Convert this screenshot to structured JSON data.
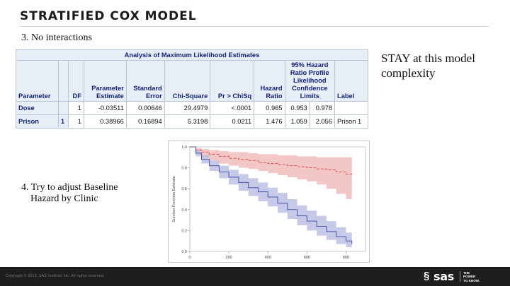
{
  "slide": {
    "title": "STRATIFIED COX MODEL",
    "bullet1": "3. No interactions",
    "bullet2_line1": "4. Try to adjust Baseline",
    "bullet2_line2": "Hazard by Clinic",
    "note": "STAY at this model complexity"
  },
  "table": {
    "caption": "Analysis of Maximum Likelihood Estimates",
    "headers": {
      "parameter": "Parameter",
      "df": "DF",
      "estimate_l1": "Parameter",
      "estimate_l2": "Estimate",
      "se_l1": "Standard",
      "se_l2": "Error",
      "chisq": "Chi-Square",
      "p": "Pr > ChiSq",
      "hr_l1": "Hazard",
      "hr_l2": "Ratio",
      "ci_l1": "95% Hazard",
      "ci_l2": "Ratio Profile",
      "ci_l3": "Likelihood",
      "ci_l4": "Confidence",
      "ci_l5": "Limits",
      "label": "Label"
    },
    "rows": [
      {
        "parameter": "Dose",
        "level": "",
        "df": "1",
        "estimate": "-0.03511",
        "se": "0.00646",
        "chisq": "29.4979",
        "p": "<.0001",
        "hr": "0.965",
        "lcl": "0.953",
        "ucl": "0.978",
        "label": ""
      },
      {
        "parameter": "Prison",
        "level": "1",
        "df": "1",
        "estimate": "0.38966",
        "se": "0.16894",
        "chisq": "5.3198",
        "p": "0.0211",
        "hr": "1.476",
        "lcl": "1.059",
        "ucl": "2.056",
        "label": "Prison 1"
      }
    ]
  },
  "chart_data": {
    "type": "line",
    "title": "",
    "xlabel": "",
    "ylabel": "Survivor Function Estimate",
    "xlim": [
      0,
      900
    ],
    "ylim": [
      0,
      1
    ],
    "x_ticks": [
      "0",
      "200",
      "400",
      "600",
      "800"
    ],
    "y_ticks": [
      "0.0",
      "0.2",
      "0.4",
      "0.6",
      "0.8",
      "1.0"
    ],
    "series": [
      {
        "color": "#d9534f",
        "band_color": "#f0b4b4",
        "x": [
          0,
          30,
          60,
          100,
          150,
          200,
          250,
          300,
          350,
          400,
          450,
          500,
          550,
          600,
          650,
          700,
          750,
          800,
          830
        ],
        "y": [
          1.0,
          0.97,
          0.95,
          0.93,
          0.91,
          0.89,
          0.88,
          0.87,
          0.85,
          0.84,
          0.83,
          0.82,
          0.81,
          0.8,
          0.79,
          0.78,
          0.76,
          0.74,
          0.72
        ],
        "lower": [
          1.0,
          0.93,
          0.9,
          0.87,
          0.84,
          0.82,
          0.8,
          0.79,
          0.77,
          0.75,
          0.73,
          0.71,
          0.69,
          0.67,
          0.64,
          0.6,
          0.55,
          0.5,
          0.46
        ],
        "upper": [
          1.0,
          0.99,
          0.98,
          0.97,
          0.96,
          0.95,
          0.95,
          0.94,
          0.93,
          0.93,
          0.92,
          0.92,
          0.91,
          0.91,
          0.9,
          0.9,
          0.9,
          0.9,
          0.9
        ]
      },
      {
        "color": "#4a58a8",
        "band_color": "#b3b8e0",
        "x": [
          0,
          30,
          60,
          100,
          150,
          200,
          250,
          300,
          350,
          400,
          450,
          500,
          550,
          600,
          650,
          700,
          750,
          800,
          830
        ],
        "y": [
          1.0,
          0.94,
          0.88,
          0.82,
          0.76,
          0.71,
          0.66,
          0.61,
          0.57,
          0.52,
          0.46,
          0.4,
          0.34,
          0.29,
          0.24,
          0.19,
          0.14,
          0.1,
          0.07
        ],
        "lower": [
          1.0,
          0.91,
          0.84,
          0.77,
          0.7,
          0.64,
          0.58,
          0.53,
          0.48,
          0.43,
          0.37,
          0.31,
          0.25,
          0.2,
          0.15,
          0.11,
          0.07,
          0.04,
          0.02
        ],
        "upper": [
          1.0,
          0.97,
          0.92,
          0.87,
          0.82,
          0.78,
          0.74,
          0.7,
          0.66,
          0.61,
          0.56,
          0.5,
          0.44,
          0.39,
          0.34,
          0.29,
          0.23,
          0.18,
          0.14
        ]
      }
    ]
  },
  "footer": {
    "copyright": "Copyright © 2013, SAS Institute Inc. All rights reserved.",
    "logo_mark": "§",
    "logo_word": "sas",
    "tagline_l1": "THE",
    "tagline_l2": "POWER",
    "tagline_l3": "TO KNOW."
  }
}
